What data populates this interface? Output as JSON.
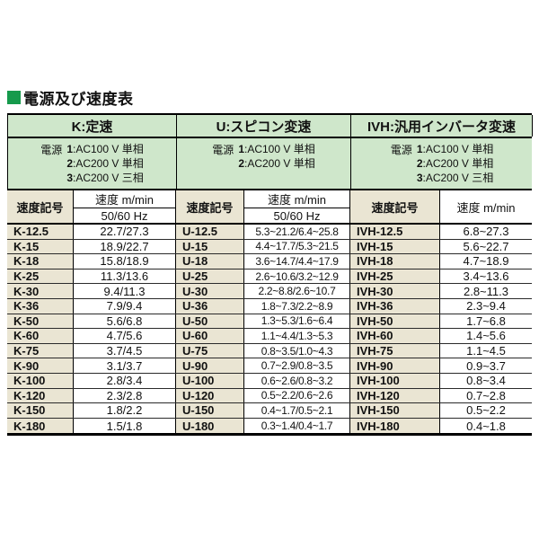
{
  "page": {
    "title": "電源及び速度表"
  },
  "colors": {
    "accent_green": "#169a4c",
    "band_green": "#cfe7cb",
    "beige": "#eae5d3"
  },
  "table": {
    "groups": [
      {
        "title": "K:定速",
        "power_label": "電源",
        "power_lines": [
          {
            "n": "1",
            "t": ":AC100 V 単相"
          },
          {
            "n": "2",
            "t": ":AC200 V 単相"
          },
          {
            "n": "3",
            "t": ":AC200 V 三相"
          }
        ]
      },
      {
        "title": "U:スピコン変速",
        "power_label": "電源",
        "power_lines": [
          {
            "n": "1",
            "t": ":AC100 V 単相"
          },
          {
            "n": "2",
            "t": ":AC200 V 単相"
          }
        ]
      },
      {
        "title": "IVH:汎用インバータ変速",
        "power_label": "電源",
        "power_lines": [
          {
            "n": "1",
            "t": ":AC100 V 単相"
          },
          {
            "n": "2",
            "t": ":AC200 V 単相"
          },
          {
            "n": "3",
            "t": ":AC200 V 三相"
          }
        ]
      }
    ],
    "headers": {
      "code": "速度記号",
      "speed": "速度 m/min",
      "hz": "50/60 Hz"
    },
    "rows": [
      {
        "kc": "K-12.5",
        "kv": "22.7/27.3",
        "uc": "U-12.5",
        "uv": "5.3~21.2/6.4~25.8",
        "ic": "IVH-12.5",
        "iv": "6.8~27.3"
      },
      {
        "kc": "K-15",
        "kv": "18.9/22.7",
        "uc": "U-15",
        "uv": "4.4~17.7/5.3~21.5",
        "ic": "IVH-15",
        "iv": "5.6~22.7"
      },
      {
        "kc": "K-18",
        "kv": "15.8/18.9",
        "uc": "U-18",
        "uv": "3.6~14.7/4.4~17.9",
        "ic": "IVH-18",
        "iv": "4.7~18.9"
      },
      {
        "kc": "K-25",
        "kv": "11.3/13.6",
        "uc": "U-25",
        "uv": "2.6~10.6/3.2~12.9",
        "ic": "IVH-25",
        "iv": "3.4~13.6"
      },
      {
        "kc": "K-30",
        "kv": "9.4/11.3",
        "uc": "U-30",
        "uv": "2.2~8.8/2.6~10.7",
        "ic": "IVH-30",
        "iv": "2.8~11.3"
      },
      {
        "kc": "K-36",
        "kv": "7.9/9.4",
        "uc": "U-36",
        "uv": "1.8~7.3/2.2~8.9",
        "ic": "IVH-36",
        "iv": "2.3~9.4"
      },
      {
        "kc": "K-50",
        "kv": "5.6/6.8",
        "uc": "U-50",
        "uv": "1.3~5.3/1.6~6.4",
        "ic": "IVH-50",
        "iv": "1.7~6.8"
      },
      {
        "kc": "K-60",
        "kv": "4.7/5.6",
        "uc": "U-60",
        "uv": "1.1~4.4/1.3~5.3",
        "ic": "IVH-60",
        "iv": "1.4~5.6"
      },
      {
        "kc": "K-75",
        "kv": "3.7/4.5",
        "uc": "U-75",
        "uv": "0.8~3.5/1.0~4.3",
        "ic": "IVH-75",
        "iv": "1.1~4.5"
      },
      {
        "kc": "K-90",
        "kv": "3.1/3.7",
        "uc": "U-90",
        "uv": "0.7~2.9/0.8~3.5",
        "ic": "IVH-90",
        "iv": "0.9~3.7"
      },
      {
        "kc": "K-100",
        "kv": "2.8/3.4",
        "uc": "U-100",
        "uv": "0.6~2.6/0.8~3.2",
        "ic": "IVH-100",
        "iv": "0.8~3.4"
      },
      {
        "kc": "K-120",
        "kv": "2.3/2.8",
        "uc": "U-120",
        "uv": "0.5~2.2/0.6~2.6",
        "ic": "IVH-120",
        "iv": "0.7~2.8"
      },
      {
        "kc": "K-150",
        "kv": "1.8/2.2",
        "uc": "U-150",
        "uv": "0.4~1.7/0.5~2.1",
        "ic": "IVH-150",
        "iv": "0.5~2.2"
      },
      {
        "kc": "K-180",
        "kv": "1.5/1.8",
        "uc": "U-180",
        "uv": "0.3~1.4/0.4~1.7",
        "ic": "IVH-180",
        "iv": "0.4~1.8"
      }
    ]
  }
}
